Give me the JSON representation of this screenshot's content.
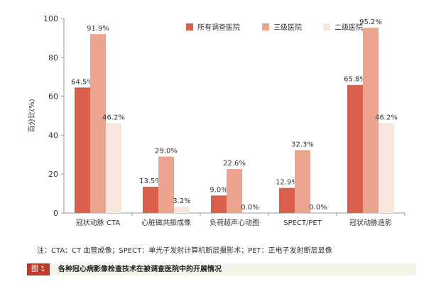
{
  "chart_data": {
    "type": "bar",
    "title": "",
    "xlabel": "",
    "ylabel": "百分比(%)",
    "ylim": [
      0,
      100
    ],
    "yticks": [
      0,
      20,
      40,
      60,
      80,
      100
    ],
    "grid": false,
    "legend_position": "top-right",
    "categories": [
      "冠状动脉 CTA",
      "心脏磁共振成像",
      "负荷超声心动图",
      "SPECT/PET",
      "冠状动脉造影"
    ],
    "series": [
      {
        "name": "所有调查医院",
        "color": "#d9604a",
        "values": [
          64.5,
          13.5,
          9.0,
          12.9,
          65.8
        ],
        "labels": [
          "64.5%",
          "13.5%",
          "9.0%",
          "12.9%",
          "65.8%"
        ]
      },
      {
        "name": "三级医院",
        "color": "#eba58f",
        "values": [
          91.9,
          29.0,
          22.6,
          32.3,
          95.2
        ],
        "labels": [
          "91.9%",
          "29.0%",
          "22.6%",
          "32.3%",
          "95.2%"
        ]
      },
      {
        "name": "二级医院",
        "color": "#f6e6dc",
        "values": [
          46.2,
          3.2,
          0.0,
          0.0,
          46.2
        ],
        "labels": [
          "46.2%",
          "3.2%",
          "0.0%",
          "0.0%",
          "46.2%"
        ]
      }
    ]
  },
  "footer": {
    "note": "注：CTA：CT 血管成像；SPECT：单光子发射计算机断层摄影术；PET：正电子发射断层显像",
    "figure_tag": "图 1",
    "figure_title": "各种冠心病影像检查技术在被调查医院中的开展情况"
  }
}
